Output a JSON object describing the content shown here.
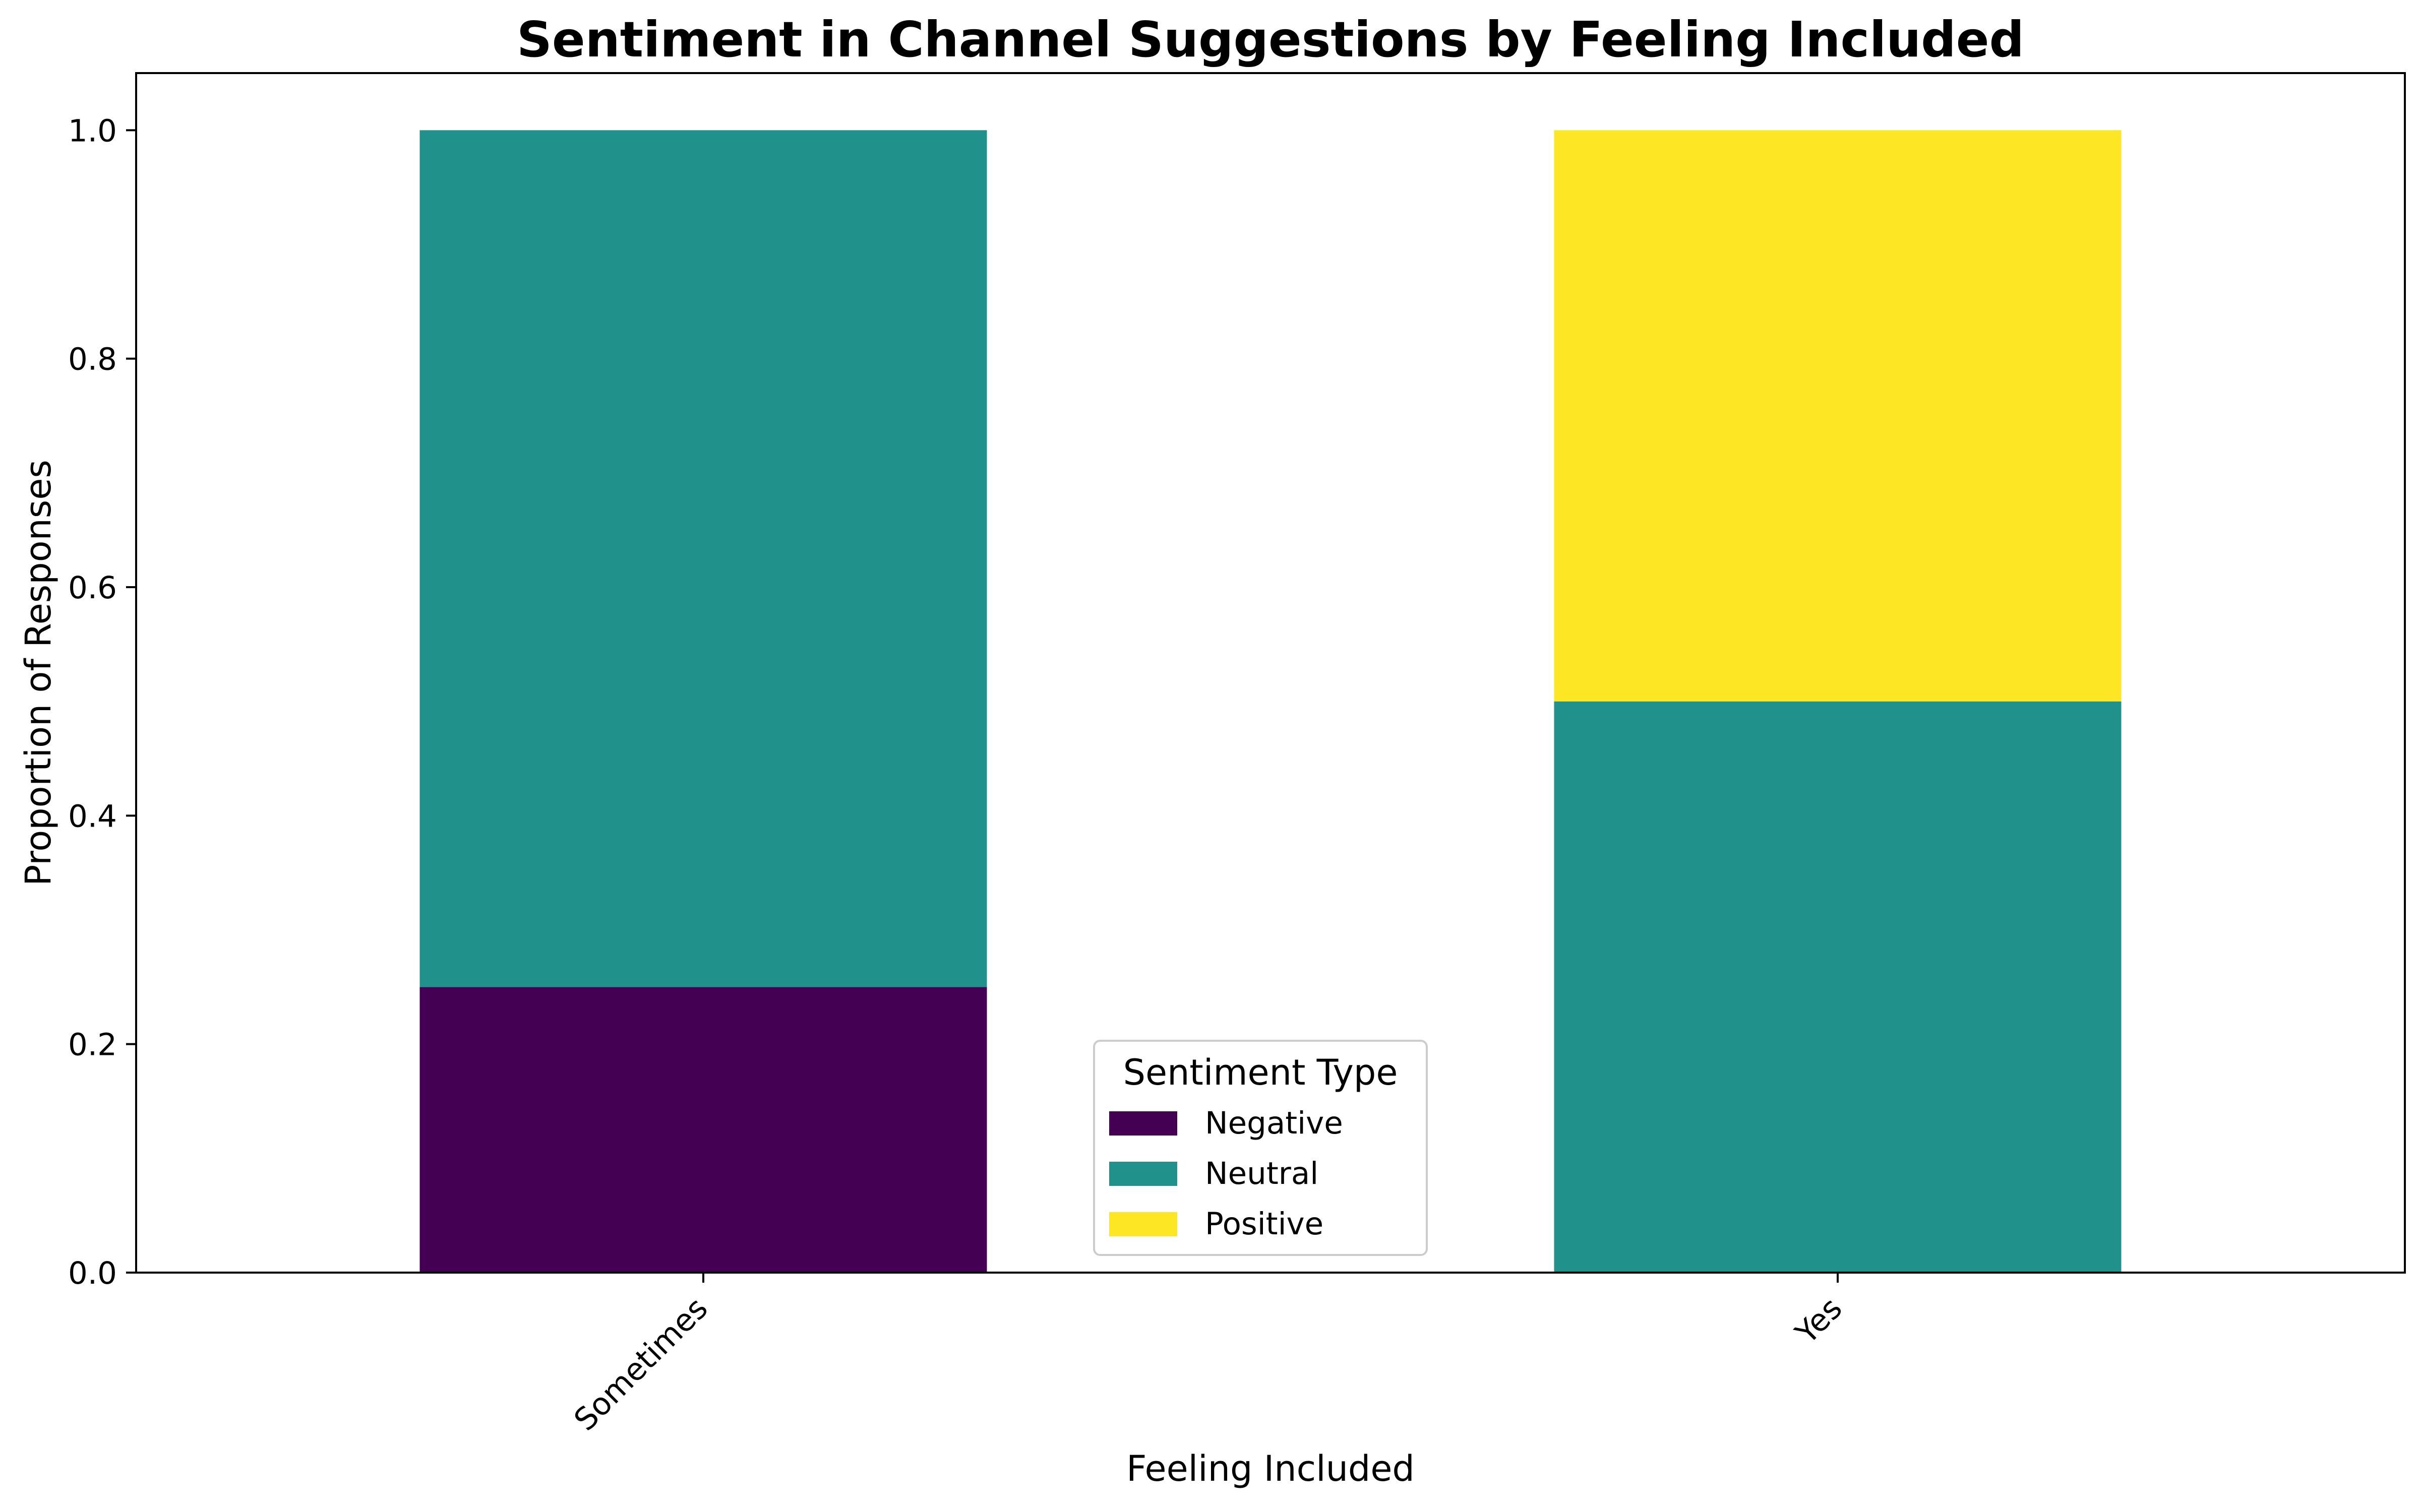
{
  "chart_data": {
    "type": "bar",
    "stacked": true,
    "title": "Sentiment in Channel Suggestions by Feeling Included",
    "xlabel": "Feeling Included",
    "ylabel": "Proportion of Responses",
    "categories": [
      "Sometimes",
      "Yes"
    ],
    "series": [
      {
        "name": "Negative",
        "color": "#440154",
        "values": [
          0.25,
          0.0
        ]
      },
      {
        "name": "Neutral",
        "color": "#21918c",
        "values": [
          0.75,
          0.5
        ]
      },
      {
        "name": "Positive",
        "color": "#fde725",
        "values": [
          0.0,
          0.5
        ]
      }
    ],
    "ylim": [
      0,
      1.05
    ],
    "yticks": [
      "0.0",
      "0.2",
      "0.4",
      "0.6",
      "0.8",
      "1.0"
    ],
    "grid": false,
    "legend": {
      "title": "Sentiment Type",
      "position": "lower-center"
    }
  }
}
